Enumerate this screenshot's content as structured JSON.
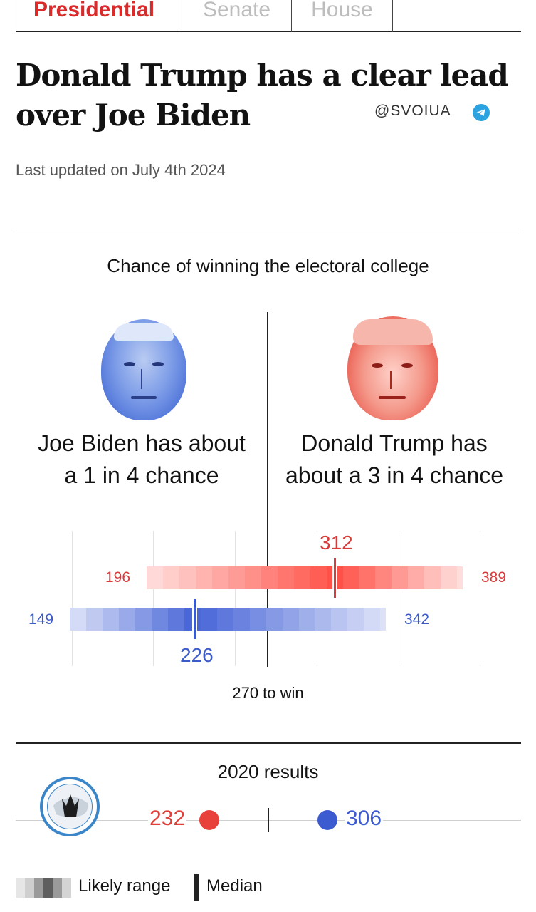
{
  "tabs": [
    {
      "label": "Presidential",
      "active": true
    },
    {
      "label": "Senate",
      "active": false
    },
    {
      "label": "House",
      "active": false
    }
  ],
  "headline": "Donald Trump has a clear lead over Joe Biden",
  "channel_handle": "@SVOIUA",
  "last_updated": "Last updated on July 4th 2024",
  "section_title": "Chance of winning the electoral college",
  "candidates": {
    "biden": {
      "text_line1": "Joe Biden has about",
      "text_line2": "a 1 in 4 chance",
      "chance": 0.25
    },
    "trump": {
      "text_line1": "Donald Trump has",
      "text_line2": "about a 3 in 4 chance",
      "chance": 0.75
    }
  },
  "chart_data": {
    "type": "range",
    "series": [
      {
        "name": "Donald Trump",
        "low": 196,
        "median": 312,
        "high": 389,
        "color": "#d93a3a"
      },
      {
        "name": "Joe Biden",
        "low": 149,
        "median": 226,
        "high": 342,
        "color": "#3b5bc8"
      }
    ],
    "labels": {
      "trump_low": "196",
      "trump_median": "312",
      "trump_high": "389",
      "biden_low": "149",
      "biden_median": "226",
      "biden_high": "342"
    },
    "threshold": 270,
    "threshold_label": "270 to win"
  },
  "results_2020": {
    "title": "2020 results",
    "red_value": "232",
    "blue_value": "306"
  },
  "legend": {
    "range_label": "Likely range",
    "median_label": "Median"
  },
  "colors": {
    "accent_red": "#d92b2b",
    "dem_blue": "#3d5bd1",
    "rep_red": "#e8403a"
  }
}
